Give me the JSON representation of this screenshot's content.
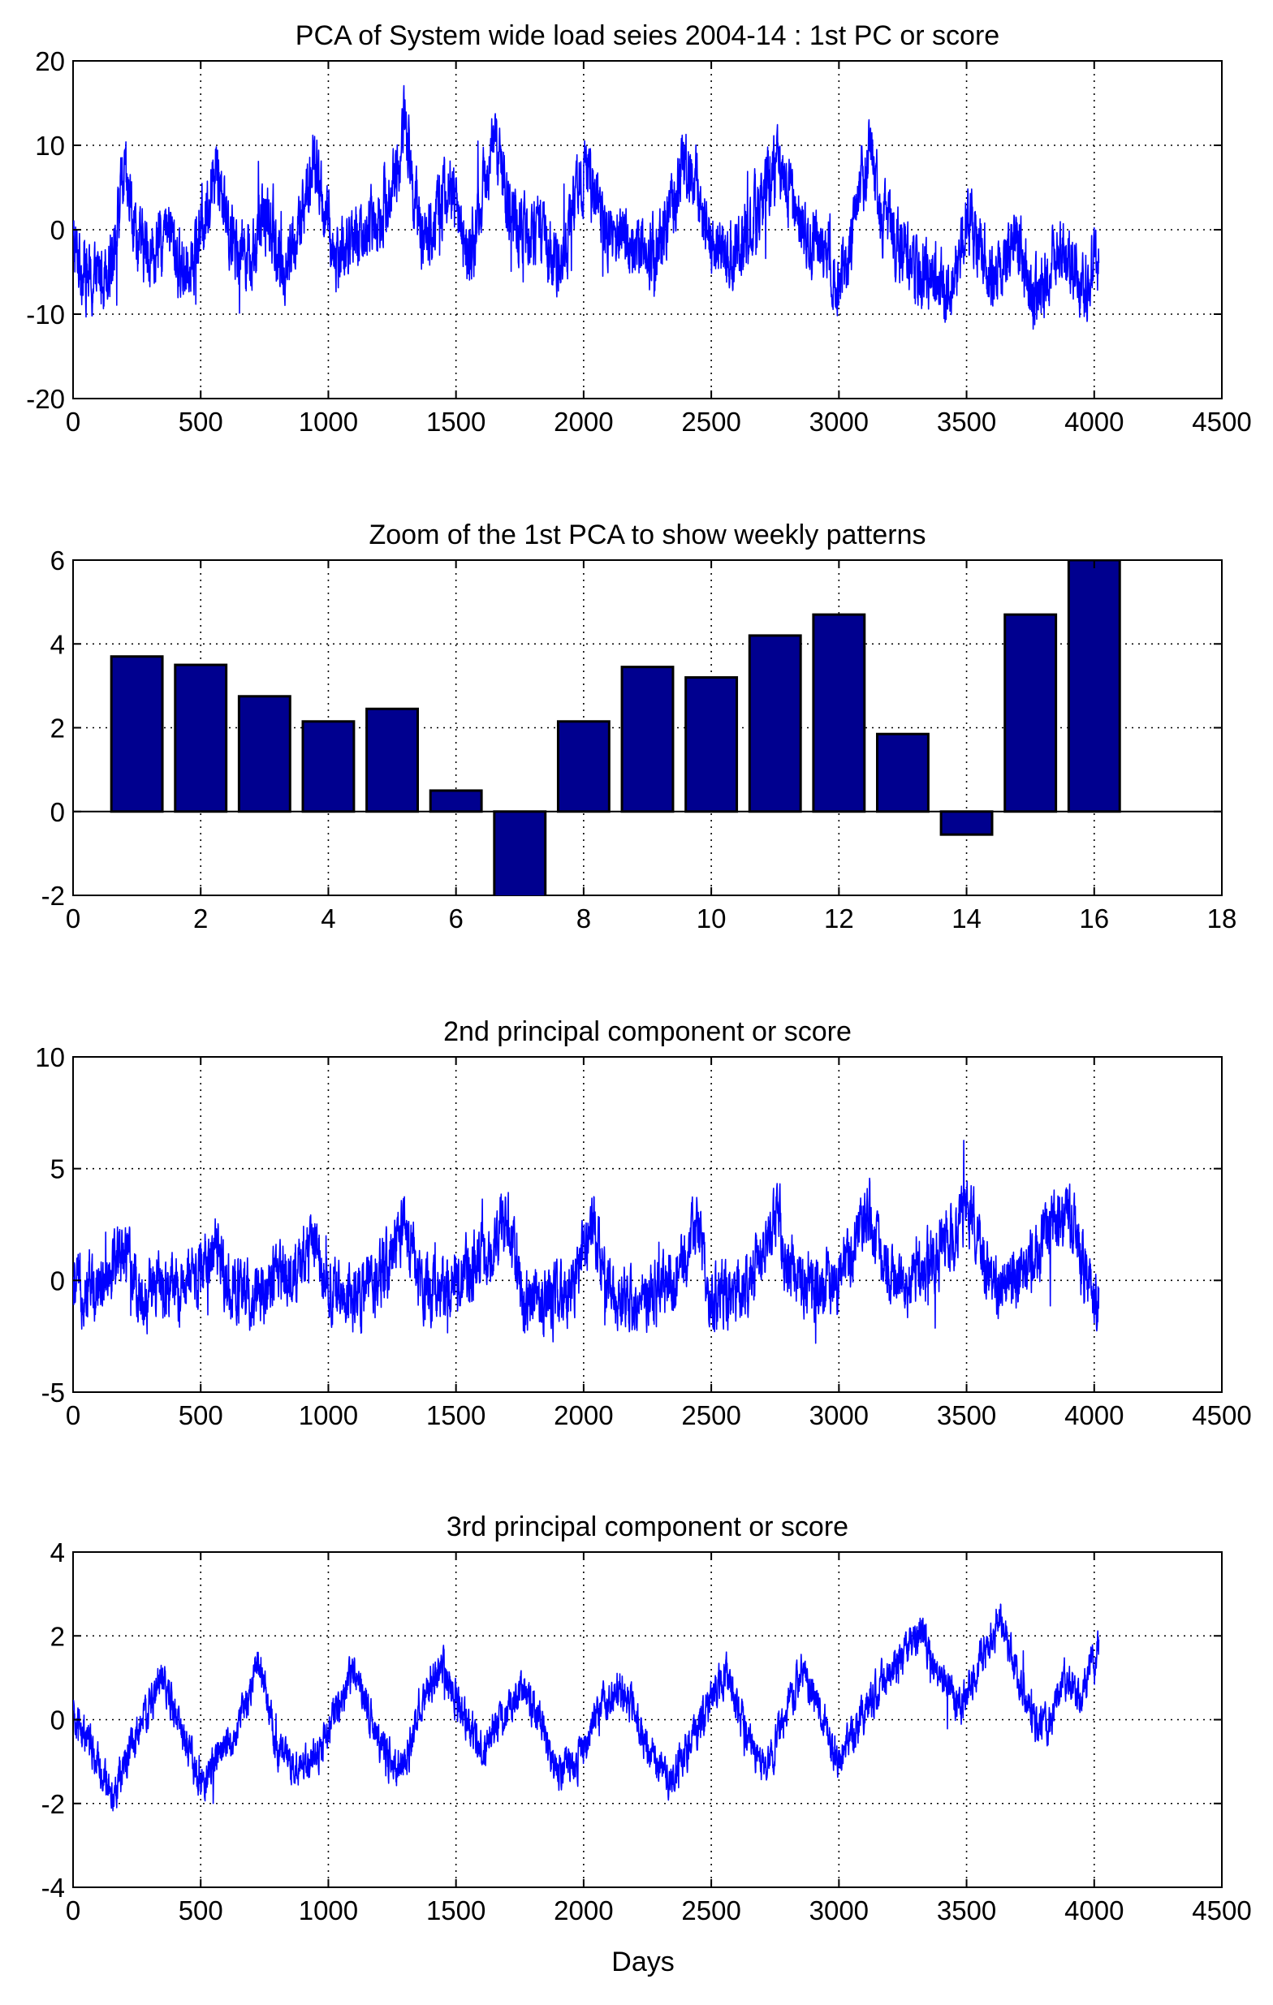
{
  "xlabel": "Days",
  "colors": {
    "trace": "#0000ff",
    "bar_fill": "#00008f",
    "bar_edge": "#000000",
    "background": "#ffffff"
  },
  "chart_data": [
    {
      "type": "line",
      "title": "PCA of System wide load seies 2004-14 : 1st PC or score",
      "xlabel": "",
      "ylabel": "",
      "xlim": [
        0,
        4500
      ],
      "ylim": [
        -20,
        20
      ],
      "xticks": [
        0,
        500,
        1000,
        1500,
        2000,
        2500,
        3000,
        3500,
        4000,
        4500
      ],
      "yticks": [
        -20,
        -10,
        0,
        10,
        20
      ],
      "grid": true,
      "n_points": 4018,
      "series": [
        {
          "envelope_note": "daily noisy series; approximate local level (x = day, y = score)",
          "x": [
            0,
            80,
            150,
            200,
            260,
            320,
            380,
            420,
            480,
            520,
            560,
            620,
            700,
            760,
            820,
            880,
            940,
            980,
            1020,
            1080,
            1150,
            1220,
            1280,
            1300,
            1340,
            1380,
            1420,
            1480,
            1550,
            1600,
            1640,
            1680,
            1740,
            1820,
            1880,
            1940,
            2000,
            2020,
            2080,
            2140,
            2200,
            2280,
            2350,
            2400,
            2440,
            2500,
            2580,
            2650,
            2700,
            2760,
            2820,
            2900,
            2960,
            3000,
            3040,
            3080,
            3120,
            3160,
            3220,
            3300,
            3380,
            3440,
            3500,
            3560,
            3620,
            3680,
            3760,
            3820,
            3880,
            3940,
            4018
          ],
          "y": [
            -2,
            -7,
            -3,
            6,
            -2,
            -3,
            0,
            -5,
            -2,
            2,
            8,
            -1,
            -3,
            2,
            -5,
            -1,
            8,
            3,
            -3,
            -2,
            0,
            3,
            8,
            14,
            3,
            -2,
            2,
            5,
            -3,
            3,
            11,
            6,
            0,
            0,
            -4,
            -1,
            7,
            8,
            0,
            -1,
            -2,
            -3,
            3,
            9,
            5,
            -1,
            -3,
            0,
            4,
            8,
            2,
            -1,
            -2,
            -7,
            -2,
            5,
            9,
            3,
            -1,
            -6,
            -5,
            -7,
            1,
            -2,
            -6,
            0,
            -8,
            -5,
            -1,
            -7,
            -3
          ]
        }
      ]
    },
    {
      "type": "bar",
      "title": "Zoom of the 1st PCA to show weekly patterns",
      "xlabel": "",
      "ylabel": "",
      "xlim": [
        0,
        18
      ],
      "ylim": [
        -2,
        6
      ],
      "xticks": [
        0,
        2,
        4,
        6,
        8,
        10,
        12,
        14,
        16,
        18
      ],
      "yticks": [
        -2,
        0,
        2,
        4,
        6
      ],
      "grid": true,
      "categories": [
        1,
        2,
        3,
        4,
        5,
        6,
        7,
        8,
        9,
        10,
        11,
        12,
        13,
        14,
        15,
        16
      ],
      "values": [
        3.7,
        3.5,
        2.75,
        2.15,
        2.45,
        0.5,
        -2.2,
        2.15,
        3.45,
        3.2,
        4.2,
        4.7,
        1.85,
        -0.55,
        4.7,
        6.0
      ]
    },
    {
      "type": "line",
      "title": "2nd principal component or score",
      "xlabel": "",
      "ylabel": "",
      "xlim": [
        0,
        4500
      ],
      "ylim": [
        -5,
        10
      ],
      "xticks": [
        0,
        500,
        1000,
        1500,
        2000,
        2500,
        3000,
        3500,
        4000,
        4500
      ],
      "yticks": [
        -5,
        0,
        5,
        10
      ],
      "grid": true,
      "n_points": 4018,
      "series": [
        {
          "envelope_note": "daily noisy series; approximate local level (x = day, y = score)",
          "x": [
            0,
            100,
            200,
            260,
            330,
            420,
            560,
            640,
            720,
            800,
            900,
            950,
            1000,
            1080,
            1200,
            1300,
            1340,
            1400,
            1500,
            1620,
            1700,
            1760,
            1850,
            1950,
            2040,
            2080,
            2180,
            2300,
            2400,
            2440,
            2500,
            2640,
            2760,
            2800,
            2900,
            3000,
            3120,
            3160,
            3240,
            3340,
            3440,
            3510,
            3560,
            3640,
            3760,
            3860,
            3900,
            3960,
            4018
          ],
          "y": [
            -0.5,
            0,
            1.5,
            -1,
            -0.3,
            -0.5,
            1.2,
            -0.7,
            -0.5,
            0,
            0.5,
            2,
            -0.5,
            -0.8,
            0,
            2.5,
            0.5,
            -0.5,
            0,
            1,
            2.8,
            -1,
            -0.8,
            -0.5,
            2.5,
            0,
            -1,
            -0.5,
            1,
            2.5,
            -0.8,
            -0.3,
            2.8,
            0.5,
            -0.5,
            0,
            3,
            1,
            -0.5,
            0.5,
            2,
            3.3,
            1,
            -0.5,
            1,
            2.5,
            3,
            0.5,
            -1
          ]
        }
      ]
    },
    {
      "type": "line",
      "title": "3rd principal component or score",
      "xlabel": "Days",
      "ylabel": "",
      "xlim": [
        0,
        4500
      ],
      "ylim": [
        -4,
        4
      ],
      "xticks": [
        0,
        500,
        1000,
        1500,
        2000,
        2500,
        3000,
        3500,
        4000,
        4500
      ],
      "yticks": [
        -4,
        -2,
        0,
        2,
        4
      ],
      "grid": true,
      "n_points": 4018,
      "series": [
        {
          "envelope_note": "daily noisy series; approximate local level (x = day, y = score)",
          "x": [
            0,
            60,
            150,
            240,
            350,
            420,
            500,
            580,
            660,
            730,
            800,
            870,
            950,
            1030,
            1100,
            1200,
            1280,
            1360,
            1450,
            1520,
            1600,
            1680,
            1760,
            1830,
            1900,
            1980,
            2060,
            2140,
            2200,
            2260,
            2340,
            2420,
            2500,
            2560,
            2640,
            2720,
            2780,
            2860,
            2920,
            3000,
            3080,
            3160,
            3260,
            3320,
            3400,
            3480,
            3560,
            3640,
            3700,
            3760,
            3820,
            3880,
            3940,
            4018
          ],
          "y": [
            0,
            -0.5,
            -1.8,
            -0.5,
            1.0,
            -0.2,
            -1.6,
            -0.8,
            0,
            1.5,
            -0.8,
            -1.2,
            -0.9,
            0.2,
            1.2,
            -0.5,
            -1.5,
            0.3,
            1.2,
            0.2,
            -0.7,
            0,
            0.8,
            0,
            -1.2,
            -1.0,
            0.2,
            0.8,
            0.2,
            -0.8,
            -1.5,
            -0.5,
            0.5,
            1.1,
            -0.4,
            -1.3,
            0,
            1.2,
            0.3,
            -1.0,
            0,
            0.8,
            1.5,
            2.2,
            0.8,
            0.3,
            1.5,
            2.5,
            1.0,
            0,
            -0.2,
            1.0,
            0.5,
            1.8
          ]
        }
      ]
    }
  ]
}
